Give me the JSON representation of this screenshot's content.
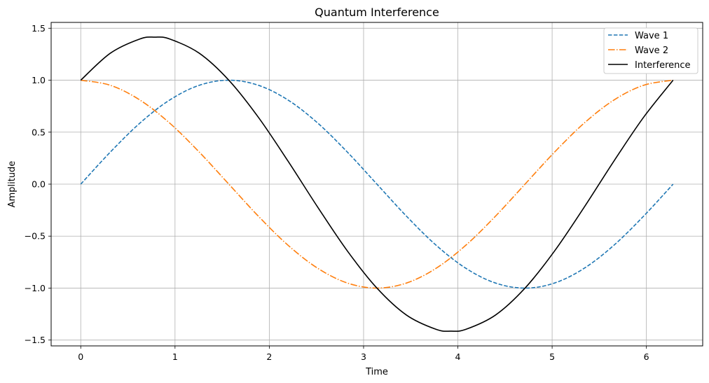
{
  "chart_data": {
    "type": "line",
    "title": "Quantum Interference",
    "xlabel": "Time",
    "ylabel": "Amplitude",
    "xlim": [
      -0.314,
      6.597
    ],
    "ylim": [
      -1.556,
      1.556
    ],
    "xticks": [
      0,
      1,
      2,
      3,
      4,
      5,
      6
    ],
    "yticks": [
      -1.5,
      -1.0,
      -0.5,
      0.0,
      0.5,
      1.0,
      1.5
    ],
    "xtick_labels": [
      "0",
      "1",
      "2",
      "3",
      "4",
      "5",
      "6"
    ],
    "ytick_labels": [
      "−1.5",
      "−1.0",
      "−0.5",
      "0.0",
      "0.5",
      "1.0",
      "1.5"
    ],
    "grid": true,
    "legend_position": "top-right",
    "series": [
      {
        "name": "Wave 1",
        "color": "#1f77b4",
        "style": "dashed",
        "x": [
          0,
          0.3142,
          0.6283,
          0.9425,
          1.2566,
          1.5708,
          1.885,
          2.1991,
          2.5133,
          2.8274,
          3.1416,
          3.4558,
          3.7699,
          4.0841,
          4.3982,
          4.7124,
          5.0265,
          5.3407,
          5.6549,
          5.969,
          6.2832
        ],
        "values": [
          0.0,
          0.309,
          0.588,
          0.809,
          0.951,
          1.0,
          0.951,
          0.809,
          0.588,
          0.309,
          0.0,
          -0.309,
          -0.588,
          -0.809,
          -0.951,
          -1.0,
          -0.951,
          -0.809,
          -0.588,
          -0.309,
          0.0
        ]
      },
      {
        "name": "Wave 2",
        "color": "#ff7f0e",
        "style": "dashdot",
        "x": [
          0,
          0.3142,
          0.6283,
          0.9425,
          1.2566,
          1.5708,
          1.885,
          2.1991,
          2.5133,
          2.8274,
          3.1416,
          3.4558,
          3.7699,
          4.0841,
          4.3982,
          4.7124,
          5.0265,
          5.3407,
          5.6549,
          5.969,
          6.2832
        ],
        "values": [
          1.0,
          0.951,
          0.809,
          0.588,
          0.309,
          0.0,
          -0.309,
          -0.588,
          -0.809,
          -0.951,
          -1.0,
          -0.951,
          -0.809,
          -0.588,
          -0.309,
          0.0,
          0.309,
          0.588,
          0.809,
          0.951,
          1.0
        ]
      },
      {
        "name": "Interference",
        "color": "#000000",
        "style": "solid",
        "x": [
          0,
          0.3142,
          0.6283,
          0.7854,
          0.9425,
          1.2566,
          1.5708,
          1.885,
          2.1991,
          2.5133,
          2.8274,
          3.1416,
          3.4558,
          3.7699,
          3.927,
          4.0841,
          4.3982,
          4.7124,
          5.0265,
          5.3407,
          5.6549,
          5.969,
          6.2832
        ],
        "values": [
          1.0,
          1.26,
          1.397,
          1.414,
          1.397,
          1.26,
          1.0,
          0.642,
          0.221,
          -0.221,
          -0.642,
          -1.0,
          -1.26,
          -1.397,
          -1.414,
          -1.397,
          -1.26,
          -1.0,
          -0.642,
          -0.221,
          0.221,
          0.642,
          1.0
        ]
      }
    ]
  }
}
